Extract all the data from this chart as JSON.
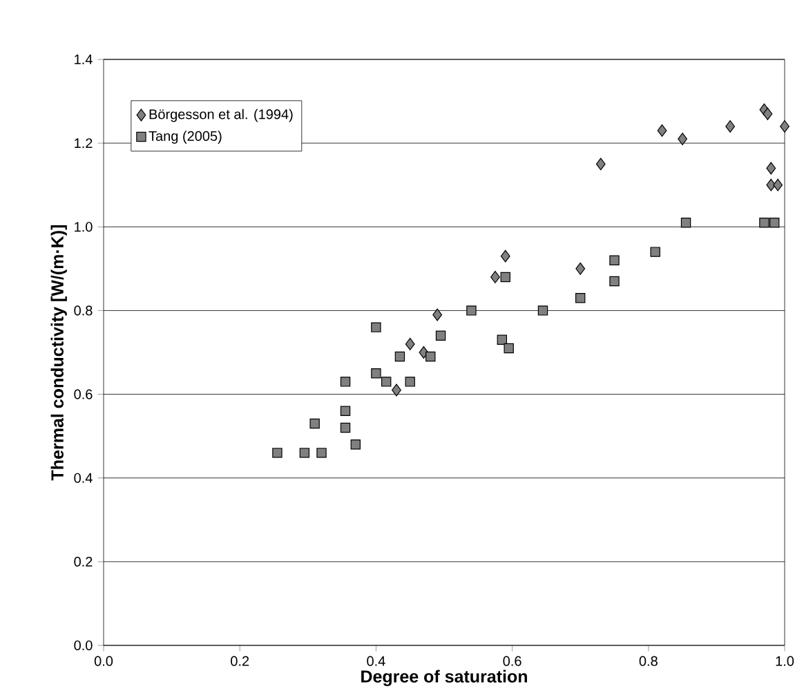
{
  "chart_data": {
    "type": "scatter",
    "xlabel": "Degree of saturation",
    "ylabel": "Thermal conductivity [W/(m·K)]",
    "xlim": [
      0,
      1
    ],
    "ylim": [
      0,
      1.4
    ],
    "xticks": [
      {
        "value": 0,
        "label": "0.0"
      },
      {
        "value": 0.2,
        "label": "0.2"
      },
      {
        "value": 0.4,
        "label": "0.4"
      },
      {
        "value": 0.6,
        "label": "0.6"
      },
      {
        "value": 0.8,
        "label": "0.8"
      },
      {
        "value": 1,
        "label": "1.0"
      }
    ],
    "yticks": [
      {
        "value": 0,
        "label": "0.0"
      },
      {
        "value": 0.2,
        "label": "0.2"
      },
      {
        "value": 0.4,
        "label": "0.4"
      },
      {
        "value": 0.6,
        "label": "0.6"
      },
      {
        "value": 0.8,
        "label": "0.8"
      },
      {
        "value": 1,
        "label": "1.0"
      },
      {
        "value": 1.2,
        "label": "1.2"
      },
      {
        "value": 1.4,
        "label": "1.4"
      }
    ],
    "grid": "y",
    "legend": "top left",
    "series": [
      {
        "name": "Börgesson et al. (1994)",
        "color": "#808080",
        "marker": "diamond",
        "x": [
          0.43,
          0.45,
          0.47,
          0.49,
          0.575,
          0.59,
          0.7,
          0.73,
          0.82,
          0.85,
          0.92,
          0.97,
          0.975,
          0.98,
          0.98,
          0.99,
          1.0
        ],
        "values": [
          0.61,
          0.72,
          0.7,
          0.79,
          0.88,
          0.93,
          0.9,
          1.15,
          1.23,
          1.21,
          1.24,
          1.28,
          1.27,
          1.14,
          1.1,
          1.1,
          1.24
        ]
      },
      {
        "name": "Tang (2005)",
        "color": "#808080",
        "marker": "square",
        "x": [
          0.255,
          0.295,
          0.31,
          0.32,
          0.355,
          0.355,
          0.355,
          0.37,
          0.4,
          0.4,
          0.415,
          0.435,
          0.45,
          0.48,
          0.495,
          0.54,
          0.59,
          0.585,
          0.595,
          0.645,
          0.7,
          0.75,
          0.75,
          0.81,
          0.855,
          0.97,
          0.985
        ],
        "values": [
          0.46,
          0.46,
          0.53,
          0.46,
          0.63,
          0.56,
          0.52,
          0.48,
          0.76,
          0.65,
          0.63,
          0.69,
          0.63,
          0.69,
          0.74,
          0.8,
          0.88,
          0.73,
          0.71,
          0.8,
          0.83,
          0.92,
          0.87,
          0.94,
          1.01,
          1.01,
          1.01
        ]
      }
    ]
  }
}
